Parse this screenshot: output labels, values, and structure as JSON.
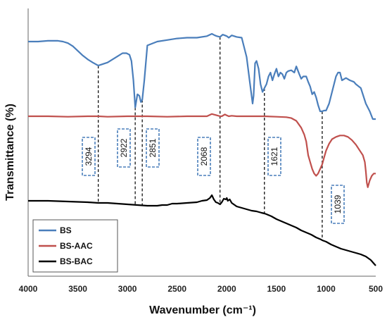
{
  "chart_data": {
    "type": "line",
    "title": "",
    "xlabel": "Wavenumber (cm⁻¹)",
    "ylabel": "Transmittance (%)",
    "xlim": [
      4000,
      500
    ],
    "x_reversed": true,
    "xticks": [
      4000,
      3500,
      3000,
      2500,
      2000,
      1500,
      1000,
      500
    ],
    "y_ticks_shown": false,
    "legend_position": "bottom-left",
    "colors": {
      "BS": "#4a7ebb",
      "BS-AAC": "#c0504d",
      "BS-BAC": "#000000"
    },
    "series": [
      {
        "name": "BS",
        "x": [
          4000,
          3900,
          3800,
          3700,
          3650,
          3600,
          3550,
          3500,
          3450,
          3400,
          3350,
          3294,
          3200,
          3100,
          3050,
          3010,
          2980,
          2960,
          2940,
          2922,
          2900,
          2880,
          2865,
          2851,
          2830,
          2800,
          2700,
          2600,
          2500,
          2400,
          2300,
          2200,
          2150,
          2120,
          2100,
          2068,
          2040,
          2020,
          2000,
          1980,
          1950,
          1900,
          1850,
          1800,
          1770,
          1740,
          1730,
          1715,
          1700,
          1680,
          1660,
          1640,
          1621,
          1600,
          1580,
          1560,
          1540,
          1520,
          1500,
          1480,
          1460,
          1440,
          1420,
          1400,
          1380,
          1350,
          1320,
          1300,
          1270,
          1250,
          1230,
          1200,
          1180,
          1160,
          1140,
          1120,
          1100,
          1080,
          1060,
          1039,
          1020,
          1000,
          970,
          940,
          900,
          880,
          860,
          840,
          800,
          760,
          720,
          700,
          650,
          600,
          560,
          530,
          500
        ],
        "y": [
          0.1,
          0.1,
          0.09,
          0.09,
          0.1,
          0.12,
          0.16,
          0.22,
          0.28,
          0.33,
          0.37,
          0.41,
          0.37,
          0.29,
          0.25,
          0.25,
          0.27,
          0.35,
          0.6,
          0.95,
          0.78,
          0.8,
          0.88,
          0.85,
          0.6,
          0.15,
          0.1,
          0.08,
          0.06,
          0.05,
          0.05,
          0.03,
          0.0,
          0.02,
          0.03,
          0.04,
          0.01,
          0.02,
          0.03,
          0.05,
          0.02,
          0.04,
          0.05,
          0.3,
          0.6,
          0.9,
          0.8,
          0.38,
          0.35,
          0.45,
          0.65,
          0.75,
          0.7,
          0.65,
          0.55,
          0.5,
          0.6,
          0.52,
          0.45,
          0.55,
          0.5,
          0.52,
          0.58,
          0.5,
          0.48,
          0.47,
          0.5,
          0.42,
          0.52,
          0.58,
          0.55,
          0.55,
          0.62,
          0.68,
          0.78,
          0.75,
          0.82,
          0.92,
          1.0,
          1.0,
          0.99,
          0.99,
          0.9,
          0.75,
          0.55,
          0.5,
          0.5,
          0.6,
          0.57,
          0.6,
          0.62,
          0.65,
          0.7,
          0.9,
          1.0,
          1.1,
          1.1
        ]
      },
      {
        "name": "BS-AAC",
        "x": [
          4000,
          3800,
          3600,
          3400,
          3294,
          3200,
          3000,
          2922,
          2851,
          2800,
          2600,
          2400,
          2300,
          2200,
          2150,
          2100,
          2068,
          2050,
          2020,
          2000,
          1980,
          1950,
          1900,
          1800,
          1700,
          1621,
          1500,
          1400,
          1350,
          1300,
          1250,
          1220,
          1200,
          1180,
          1160,
          1140,
          1120,
          1100,
          1080,
          1060,
          1039,
          1020,
          1000,
          970,
          940,
          900,
          860,
          820,
          780,
          740,
          700,
          660,
          630,
          610,
          600,
          590,
          580,
          560,
          540,
          520,
          500
        ],
        "y": [
          0.0,
          0.0,
          0.01,
          0.0,
          0.0,
          0.01,
          0.0,
          0.0,
          0.0,
          0.0,
          0.01,
          0.0,
          0.0,
          0.0,
          -0.05,
          -0.02,
          0.0,
          0.0,
          -0.04,
          -0.02,
          0.0,
          -0.01,
          0.0,
          0.0,
          0.0,
          0.0,
          0.01,
          0.02,
          0.04,
          0.1,
          0.25,
          0.4,
          0.55,
          0.85,
          1.0,
          1.15,
          1.25,
          1.3,
          1.25,
          1.15,
          1.05,
          0.9,
          0.75,
          0.6,
          0.5,
          0.45,
          0.42,
          0.42,
          0.45,
          0.52,
          0.62,
          0.75,
          0.85,
          1.0,
          1.2,
          1.45,
          1.55,
          1.4,
          1.3,
          1.25,
          1.25
        ]
      },
      {
        "name": "BS-BAC",
        "x": [
          4000,
          3800,
          3600,
          3400,
          3294,
          3200,
          3000,
          2900,
          2800,
          2700,
          2650,
          2600,
          2550,
          2500,
          2400,
          2300,
          2250,
          2200,
          2170,
          2150,
          2130,
          2110,
          2090,
          2068,
          2050,
          2030,
          2010,
          2000,
          1990,
          1970,
          1950,
          1900,
          1850,
          1800,
          1750,
          1700,
          1650,
          1621,
          1600,
          1550,
          1500,
          1450,
          1400,
          1350,
          1300,
          1250,
          1200,
          1150,
          1100,
          1050,
          1039,
          1000,
          950,
          900,
          850,
          800,
          750,
          700,
          650,
          600,
          550,
          500
        ],
        "y": [
          0.0,
          0.0,
          0.01,
          0.02,
          0.03,
          0.03,
          0.05,
          0.06,
          0.07,
          0.07,
          0.06,
          0.06,
          0.04,
          0.04,
          0.03,
          0.02,
          0.0,
          -0.01,
          -0.04,
          -0.08,
          -0.02,
          0.02,
          0.03,
          0.05,
          0.02,
          -0.03,
          -0.02,
          -0.04,
          0.0,
          -0.02,
          0.03,
          0.08,
          0.1,
          0.12,
          0.14,
          0.15,
          0.17,
          0.18,
          0.19,
          0.22,
          0.26,
          0.29,
          0.32,
          0.35,
          0.38,
          0.42,
          0.45,
          0.48,
          0.52,
          0.55,
          0.56,
          0.58,
          0.62,
          0.65,
          0.68,
          0.7,
          0.72,
          0.74,
          0.76,
          0.79,
          0.84,
          0.92
        ]
      }
    ],
    "annotations": [
      {
        "label": "3294",
        "x": 3294
      },
      {
        "label": "2922",
        "x": 2922
      },
      {
        "label": "2851",
        "x": 2851
      },
      {
        "label": "2068",
        "x": 2068
      },
      {
        "label": "1621",
        "x": 1621
      },
      {
        "label": "1039",
        "x": 1039
      }
    ]
  }
}
